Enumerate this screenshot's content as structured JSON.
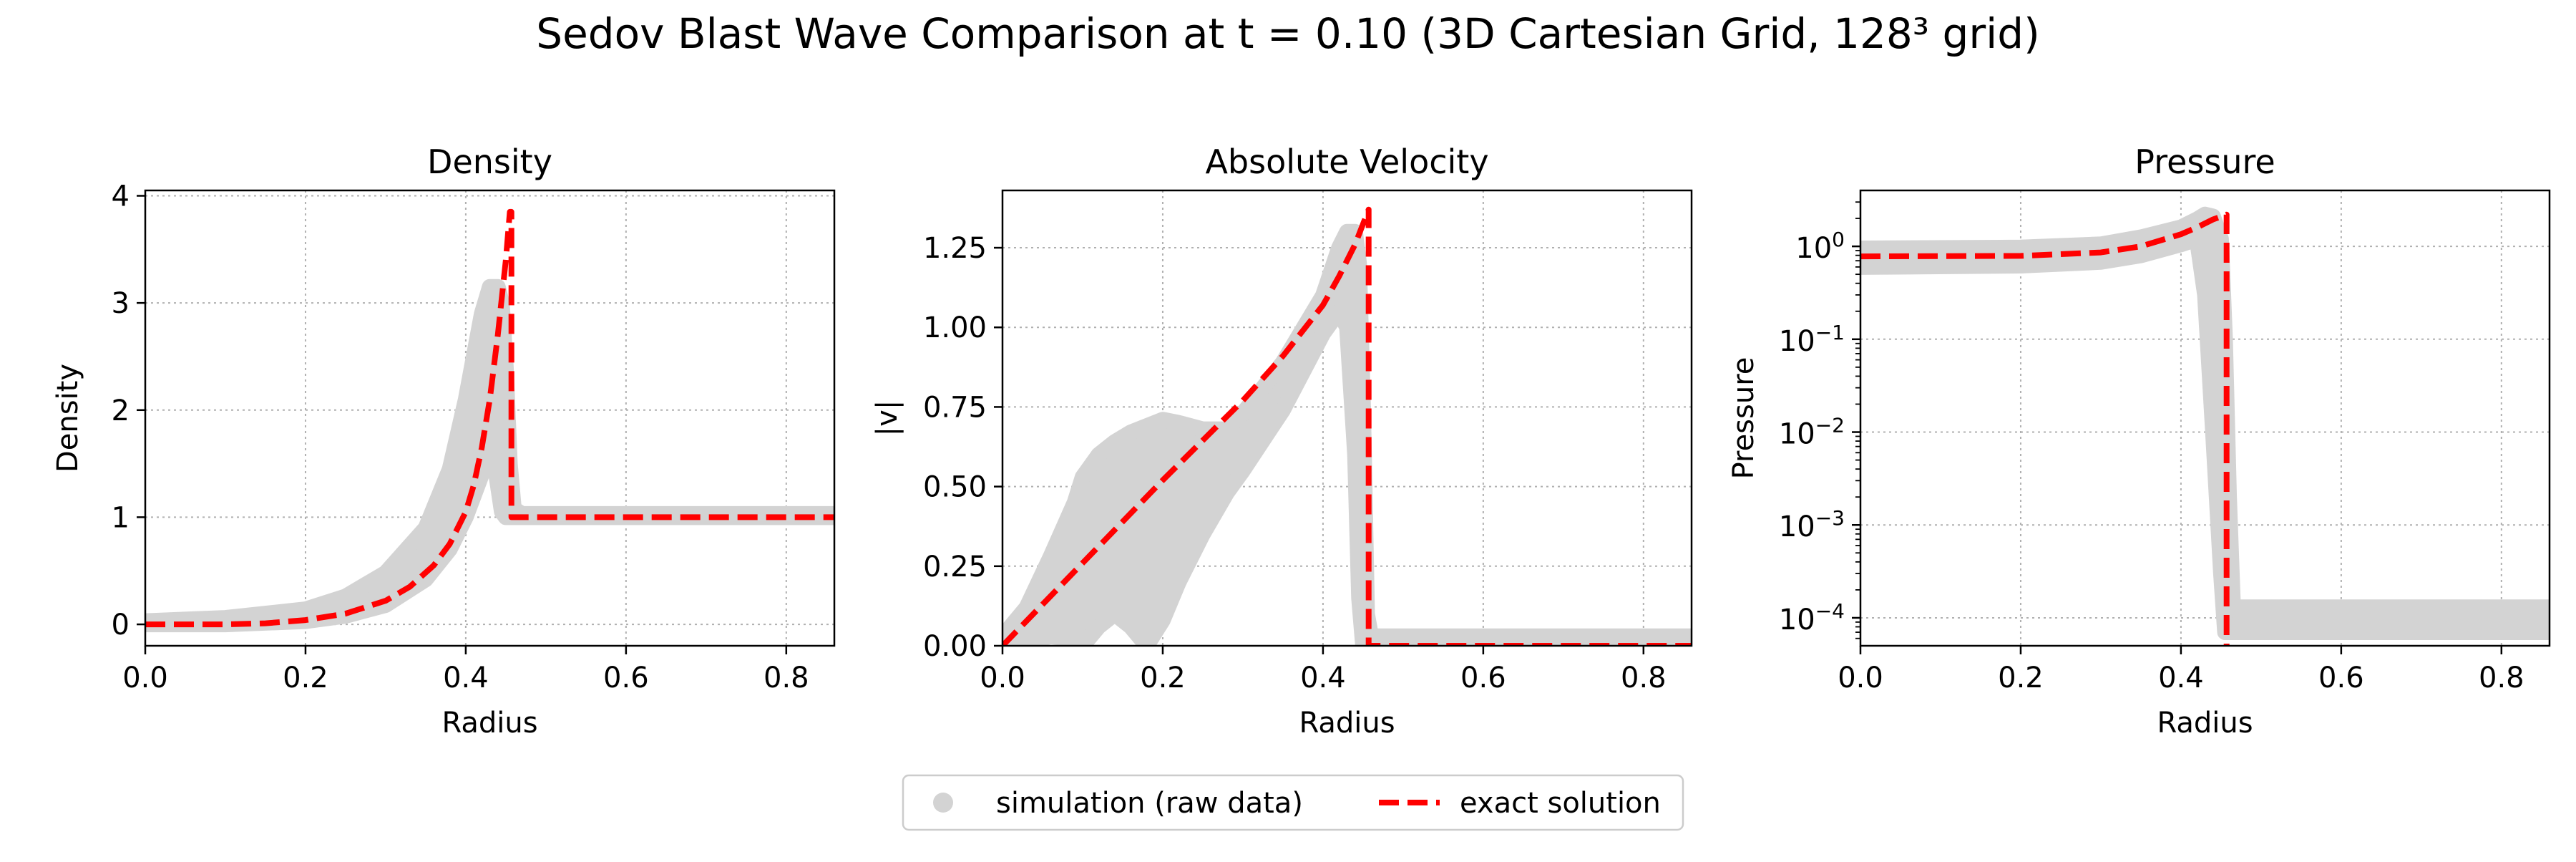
{
  "figure": {
    "title": "Sedov Blast Wave Comparison at t = 0.10 (3D Cartesian Grid, 128³ grid)",
    "legend": {
      "placement": "bottom-center",
      "entries": [
        {
          "label": "simulation (raw data)",
          "color": "#d3d3d3",
          "marker": "circle"
        },
        {
          "label": "exact solution",
          "color": "#ff0000",
          "style": "dashed"
        }
      ]
    }
  },
  "chart_data": [
    {
      "type": "line",
      "title": "Density",
      "xlabel": "Radius",
      "ylabel": "Density",
      "xlim": [
        0,
        0.86
      ],
      "ylim": [
        -0.2,
        4.05
      ],
      "yscale": "linear",
      "grid": true,
      "xticks": [
        0.0,
        0.2,
        0.4,
        0.6,
        0.8
      ],
      "xtick_labels": [
        "0.0",
        "0.2",
        "0.4",
        "0.6",
        "0.8"
      ],
      "yticks": [
        0,
        1,
        2,
        3,
        4
      ],
      "ytick_labels": [
        "0",
        "1",
        "2",
        "3",
        "4"
      ],
      "series": [
        {
          "name": "simulation (raw data)",
          "color": "#d3d3d3",
          "band_x": [
            0.0,
            0.1,
            0.2,
            0.25,
            0.3,
            0.35,
            0.38,
            0.4,
            0.42,
            0.43,
            0.44,
            0.445,
            0.45,
            0.455,
            0.46,
            0.47,
            0.5,
            0.86
          ],
          "band_lower": [
            0.0,
            0.0,
            0.03,
            0.08,
            0.18,
            0.42,
            0.7,
            1.0,
            1.4,
            1.8,
            1.3,
            1.05,
            1.0,
            1.0,
            1.0,
            1.0,
            1.0,
            1.0
          ],
          "band_upper": [
            0.03,
            0.06,
            0.14,
            0.26,
            0.48,
            0.9,
            1.45,
            2.1,
            2.9,
            3.15,
            3.15,
            3.0,
            2.4,
            1.5,
            1.08,
            1.03,
            1.03,
            1.03
          ]
        },
        {
          "name": "exact solution",
          "color": "#ff0000",
          "x": [
            0.0,
            0.1,
            0.15,
            0.2,
            0.25,
            0.3,
            0.33,
            0.36,
            0.38,
            0.4,
            0.41,
            0.42,
            0.43,
            0.44,
            0.45,
            0.455,
            0.457,
            0.457,
            0.86
          ],
          "y": [
            0.0,
            0.0,
            0.01,
            0.04,
            0.1,
            0.22,
            0.35,
            0.55,
            0.75,
            1.05,
            1.3,
            1.65,
            2.1,
            2.7,
            3.4,
            3.85,
            3.85,
            1.0,
            1.0
          ]
        }
      ]
    },
    {
      "type": "line",
      "title": "Absolute Velocity",
      "xlabel": "Radius",
      "ylabel": "|v|",
      "xlim": [
        0,
        0.86
      ],
      "ylim": [
        0,
        1.43
      ],
      "yscale": "linear",
      "grid": true,
      "xticks": [
        0.0,
        0.2,
        0.4,
        0.6,
        0.8
      ],
      "xtick_labels": [
        "0.0",
        "0.2",
        "0.4",
        "0.6",
        "0.8"
      ],
      "yticks": [
        0,
        0.25,
        0.5,
        0.75,
        1.0,
        1.25
      ],
      "ytick_labels": [
        "0.00",
        "0.25",
        "0.50",
        "0.75",
        "1.00",
        "1.25"
      ],
      "series": [
        {
          "name": "simulation (raw data)",
          "color": "#d3d3d3",
          "band_x": [
            0.0,
            0.03,
            0.06,
            0.09,
            0.1,
            0.12,
            0.14,
            0.16,
            0.18,
            0.2,
            0.22,
            0.25,
            0.28,
            0.3,
            0.35,
            0.4,
            0.42,
            0.43,
            0.44,
            0.445,
            0.45,
            0.455,
            0.46,
            0.86
          ],
          "band_lower": [
            0.0,
            0.01,
            0.03,
            0.02,
            0.0,
            0.06,
            0.1,
            0.06,
            0.0,
            0.08,
            0.2,
            0.35,
            0.48,
            0.55,
            0.74,
            0.98,
            1.05,
            1.0,
            0.6,
            0.15,
            0.0,
            0.0,
            0.0,
            0.0
          ],
          "band_upper": [
            0.03,
            0.12,
            0.28,
            0.45,
            0.53,
            0.6,
            0.64,
            0.67,
            0.69,
            0.71,
            0.7,
            0.68,
            0.68,
            0.73,
            0.89,
            1.1,
            1.25,
            1.3,
            1.3,
            1.2,
            0.75,
            0.1,
            0.03,
            0.03
          ]
        },
        {
          "name": "exact solution",
          "color": "#ff0000",
          "x": [
            0.0,
            0.1,
            0.2,
            0.3,
            0.35,
            0.4,
            0.42,
            0.44,
            0.457,
            0.457,
            0.86
          ],
          "y": [
            0.0,
            0.26,
            0.52,
            0.77,
            0.91,
            1.07,
            1.16,
            1.26,
            1.37,
            0.0,
            0.0
          ]
        }
      ]
    },
    {
      "type": "line",
      "title": "Pressure",
      "xlabel": "Radius",
      "ylabel": "Pressure",
      "xlim": [
        0,
        0.86
      ],
      "ylim": [
        5e-05,
        4
      ],
      "yscale": "log",
      "grid": true,
      "xticks": [
        0.0,
        0.2,
        0.4,
        0.6,
        0.8
      ],
      "xtick_labels": [
        "0.0",
        "0.2",
        "0.4",
        "0.6",
        "0.8"
      ],
      "yticks": [
        0.0001,
        0.001,
        0.01,
        0.1,
        1
      ],
      "ytick_base": "10",
      "ytick_exponents": [
        "−4",
        "−3",
        "−2",
        "−1",
        "0"
      ],
      "series": [
        {
          "name": "simulation (raw data)",
          "color": "#d3d3d3",
          "band_x": [
            0.0,
            0.2,
            0.3,
            0.35,
            0.4,
            0.42,
            0.43,
            0.44,
            0.45,
            0.455,
            0.46,
            0.465,
            0.47,
            0.86
          ],
          "band_lower": [
            0.6,
            0.62,
            0.68,
            0.8,
            1.05,
            1.2,
            0.3,
            0.01,
            0.0003,
            7e-05,
            7e-05,
            7e-05,
            7e-05,
            7e-05
          ],
          "band_upper": [
            0.95,
            0.97,
            1.05,
            1.25,
            1.6,
            1.95,
            2.2,
            2.1,
            1.2,
            0.1,
            0.002,
            0.00013,
            0.00013,
            0.00013
          ]
        },
        {
          "name": "exact solution",
          "color": "#ff0000",
          "x": [
            0.0,
            0.2,
            0.3,
            0.35,
            0.4,
            0.42,
            0.44,
            0.457,
            0.457
          ],
          "y": [
            0.78,
            0.79,
            0.86,
            1.0,
            1.35,
            1.6,
            1.95,
            2.2,
            5e-05
          ]
        }
      ]
    }
  ]
}
